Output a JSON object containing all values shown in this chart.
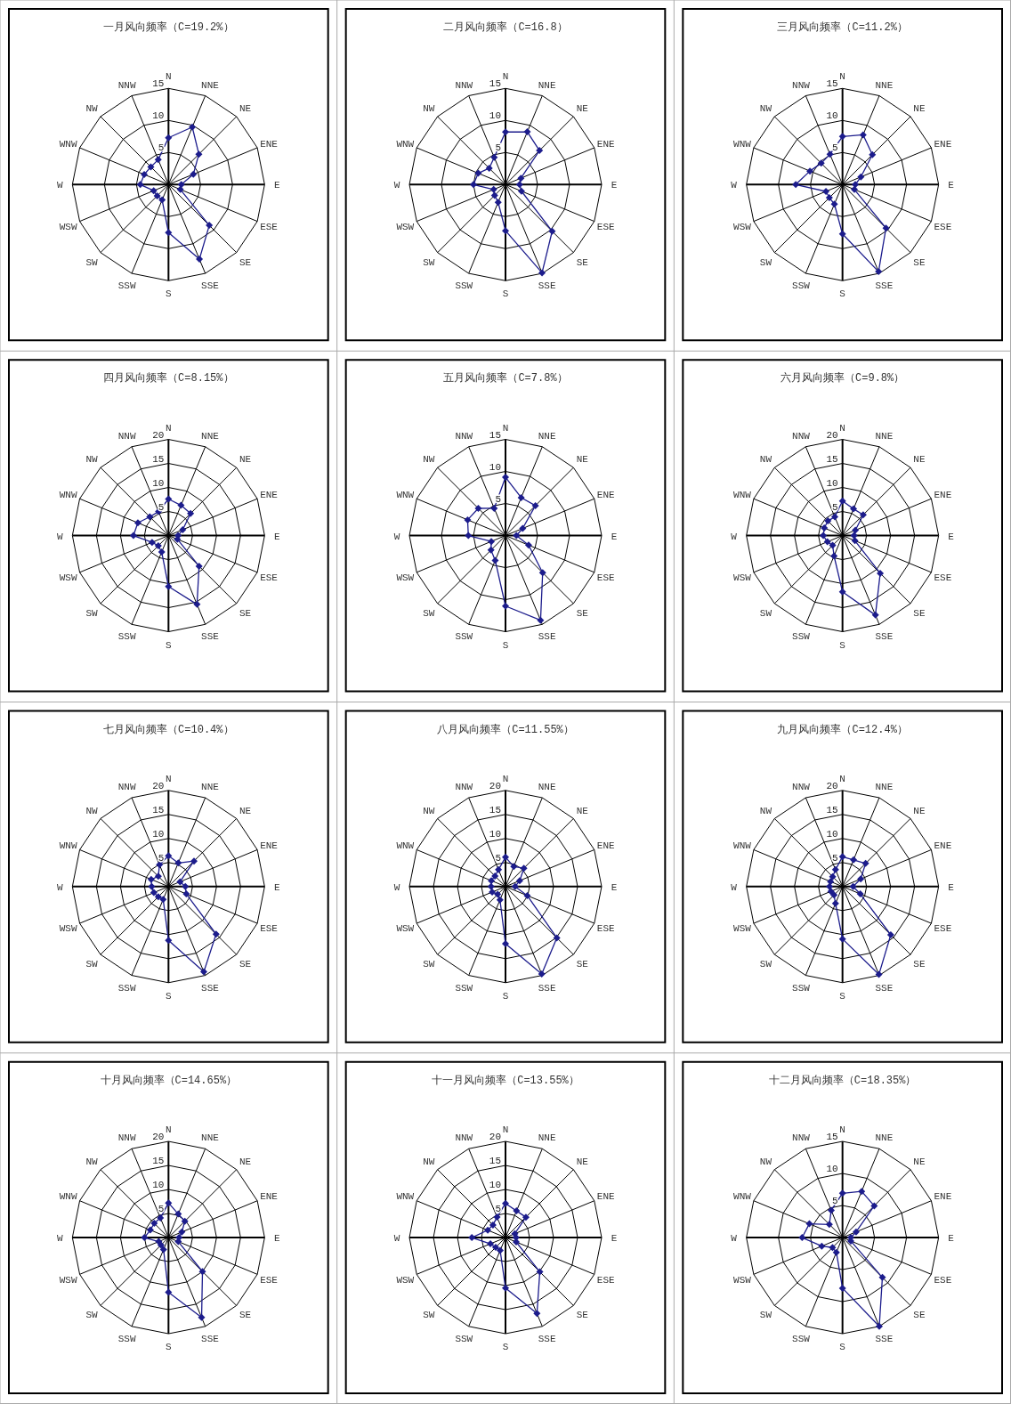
{
  "chart_data": [
    {
      "type": "radar",
      "title": "一月风向频率（C=19.2%）",
      "categories": [
        "N",
        "NNE",
        "NE",
        "ENE",
        "E",
        "ESE",
        "SE",
        "SSE",
        "S",
        "SSW",
        "SW",
        "WSW",
        "W",
        "WNW",
        "NW",
        "NNW"
      ],
      "series": [
        {
          "color": "#1c1c8c",
          "values": [
            7.3,
            9.7,
            6.7,
            4.2,
            2.0,
            2.0,
            9.0,
            12.6,
            7.5,
            2.6,
            2.5,
            2.5,
            4.4,
            4.1,
            3.9,
            4.2
          ]
        }
      ],
      "ylim": [
        0,
        15
      ],
      "yticks": [
        5,
        10,
        15
      ],
      "marker": "diamond",
      "grid": true
    },
    {
      "type": "radar",
      "title": "二月风向频率（C=16.8）",
      "categories": [
        "N",
        "NNE",
        "NE",
        "ENE",
        "E",
        "ESE",
        "SE",
        "SSE",
        "S",
        "SSW",
        "SW",
        "WSW",
        "W",
        "WNW",
        "NW",
        "NNW"
      ],
      "series": [
        {
          "color": "#1c1c8c",
          "values": [
            8.2,
            8.9,
            7.5,
            2.6,
            2.2,
            2.7,
            10.3,
            14.9,
            7.2,
            3.0,
            2.4,
            2.0,
            5.0,
            4.6,
            3.6,
            4.6
          ]
        }
      ],
      "ylim": [
        0,
        15
      ],
      "yticks": [
        5,
        10,
        15
      ],
      "marker": "diamond",
      "grid": true
    },
    {
      "type": "radar",
      "title": "三月风向频率（C=11.2%）",
      "categories": [
        "N",
        "NNE",
        "NE",
        "ENE",
        "E",
        "ESE",
        "SE",
        "SSE",
        "S",
        "SSW",
        "SW",
        "WSW",
        "W",
        "WNW",
        "NW",
        "NNW"
      ],
      "series": [
        {
          "color": "#1c1c8c",
          "values": [
            7.5,
            8.4,
            6.6,
            3.1,
            2.0,
            2.0,
            9.6,
            14.7,
            7.7,
            3.3,
            2.9,
            2.8,
            7.3,
            5.5,
            4.7,
            5.1
          ]
        }
      ],
      "ylim": [
        0,
        15
      ],
      "yticks": [
        5,
        10,
        15
      ],
      "marker": "diamond",
      "grid": true
    },
    {
      "type": "radar",
      "title": "四月风向频率（C=8.15%）",
      "categories": [
        "N",
        "NNE",
        "NE",
        "ENE",
        "E",
        "ESE",
        "SE",
        "SSE",
        "S",
        "SSW",
        "SW",
        "WSW",
        "W",
        "WNW",
        "NW",
        "NNW"
      ],
      "series": [
        {
          "color": "#1c1c8c",
          "values": [
            7.6,
            6.8,
            6.5,
            3.2,
            2.0,
            2.0,
            9.0,
            15.5,
            10.6,
            3.7,
            3.0,
            3.7,
            7.3,
            6.9,
            5.5,
            5.4
          ]
        }
      ],
      "ylim": [
        0,
        20
      ],
      "yticks": [
        5,
        10,
        15,
        20
      ],
      "marker": "diamond",
      "grid": true
    },
    {
      "type": "radar",
      "title": "五月风向频率（C=7.8%）",
      "categories": [
        "N",
        "NNE",
        "NE",
        "ENE",
        "E",
        "ESE",
        "SE",
        "SSE",
        "S",
        "SSW",
        "SW",
        "WSW",
        "W",
        "WNW",
        "NW",
        "NNW"
      ],
      "series": [
        {
          "color": "#1c1c8c",
          "values": [
            9.1,
            6.4,
            6.6,
            2.9,
            1.7,
            3.9,
            8.2,
            14.3,
            11.0,
            4.2,
            3.2,
            2.4,
            5.8,
            6.4,
            6.0,
            4.6
          ]
        }
      ],
      "ylim": [
        0,
        15
      ],
      "yticks": [
        5,
        10,
        15
      ],
      "marker": "diamond",
      "grid": true
    },
    {
      "type": "radar",
      "title": "六月风向频率（C=9.8%）",
      "categories": [
        "N",
        "NNE",
        "NE",
        "ENE",
        "E",
        "ESE",
        "SE",
        "SSE",
        "S",
        "SSW",
        "SW",
        "WSW",
        "W",
        "WNW",
        "NW",
        "NNW"
      ],
      "series": [
        {
          "color": "#1c1c8c",
          "values": [
            7.2,
            6.0,
            6.1,
            2.9,
            2.4,
            2.8,
            11.1,
            17.9,
            11.7,
            4.6,
            2.9,
            3.4,
            4.0,
            4.1,
            4.3,
            4.2
          ]
        }
      ],
      "ylim": [
        0,
        20
      ],
      "yticks": [
        5,
        10,
        15,
        20
      ],
      "marker": "diamond",
      "grid": true
    },
    {
      "type": "radar",
      "title": "七月风向频率（C=10.4%）",
      "categories": [
        "N",
        "NNE",
        "NE",
        "ENE",
        "E",
        "ESE",
        "SE",
        "SSE",
        "S",
        "SSW",
        "SW",
        "WSW",
        "W",
        "WNW",
        "NW",
        "NNW"
      ],
      "series": [
        {
          "color": "#1c1c8c",
          "values": [
            6.4,
            5.3,
            7.5,
            2.6,
            3.5,
            4.0,
            14.0,
            19.2,
            11.2,
            2.9,
            3.0,
            3.3,
            3.5,
            3.9,
            3.0,
            4.9
          ]
        }
      ],
      "ylim": [
        0,
        20
      ],
      "yticks": [
        5,
        10,
        15,
        20
      ],
      "marker": "diamond",
      "grid": true
    },
    {
      "type": "radar",
      "title": "八月风向频率（C=11.55%）",
      "categories": [
        "N",
        "NNE",
        "NE",
        "ENE",
        "E",
        "ESE",
        "SE",
        "SSE",
        "S",
        "SSW",
        "SW",
        "WSW",
        "W",
        "WNW",
        "NW",
        "NNW"
      ],
      "series": [
        {
          "color": "#1c1c8c",
          "values": [
            6.1,
            4.5,
            5.4,
            3.2,
            2.0,
            4.9,
            15.1,
            19.7,
            11.9,
            3.0,
            2.3,
            3.0,
            3.0,
            3.2,
            3.1,
            3.8
          ]
        }
      ],
      "ylim": [
        0,
        20
      ],
      "yticks": [
        5,
        10,
        15,
        20
      ],
      "marker": "diamond",
      "grid": true
    },
    {
      "type": "radar",
      "title": "九月风向频率（C=12.4%）",
      "categories": [
        "N",
        "NNE",
        "NE",
        "ENE",
        "E",
        "ESE",
        "SE",
        "SSE",
        "S",
        "SSW",
        "SW",
        "WSW",
        "W",
        "WNW",
        "NW",
        "NNW"
      ],
      "series": [
        {
          "color": "#1c1c8c",
          "values": [
            6.2,
            6.0,
            6.8,
            4.1,
            2.2,
            4.0,
            14.2,
            19.8,
            10.9,
            3.8,
            2.5,
            2.6,
            2.7,
            2.7,
            2.9,
            3.8
          ]
        }
      ],
      "ylim": [
        0,
        20
      ],
      "yticks": [
        5,
        10,
        15,
        20
      ],
      "marker": "diamond",
      "grid": true
    },
    {
      "type": "radar",
      "title": "十月风向频率（C=14.65%）",
      "categories": [
        "N",
        "NNE",
        "NE",
        "ENE",
        "E",
        "ESE",
        "SE",
        "SSE",
        "S",
        "SSW",
        "SW",
        "WSW",
        "W",
        "WNW",
        "NW",
        "NNW"
      ],
      "series": [
        {
          "color": "#1c1c8c",
          "values": [
            7.2,
            5.3,
            4.8,
            3.0,
            2.2,
            2.2,
            10.0,
            18.0,
            11.4,
            2.7,
            2.2,
            2.2,
            5.0,
            4.1,
            4.2,
            4.4
          ]
        }
      ],
      "ylim": [
        0,
        20
      ],
      "yticks": [
        5,
        10,
        15,
        20
      ],
      "marker": "diamond",
      "grid": true
    },
    {
      "type": "radar",
      "title": "十一月风向频率（C=13.55%）",
      "categories": [
        "N",
        "NNE",
        "NE",
        "ENE",
        "E",
        "ESE",
        "SE",
        "SSE",
        "S",
        "SSW",
        "SW",
        "WSW",
        "W",
        "WNW",
        "NW",
        "NNW"
      ],
      "series": [
        {
          "color": "#1c1c8c",
          "values": [
            7.1,
            6.0,
            6.0,
            2.1,
            2.2,
            2.4,
            10.1,
            17.1,
            10.5,
            2.9,
            2.9,
            3.4,
            7.0,
            4.0,
            3.7,
            4.6
          ]
        }
      ],
      "ylim": [
        0,
        20
      ],
      "yticks": [
        5,
        10,
        15,
        20
      ],
      "marker": "diamond",
      "grid": true
    },
    {
      "type": "radar",
      "title": "十二月风向频率（C=18.35%）",
      "categories": [
        "N",
        "NNE",
        "NE",
        "ENE",
        "E",
        "ESE",
        "SE",
        "SSE",
        "S",
        "SSW",
        "SW",
        "WSW",
        "W",
        "WNW",
        "NW",
        "NNW"
      ],
      "series": [
        {
          "color": "#1c1c8c",
          "values": [
            6.9,
            7.8,
            7.0,
            2.3,
            1.3,
            1.4,
            8.8,
            15.0,
            7.9,
            2.5,
            2.2,
            3.5,
            6.3,
            5.6,
            2.9,
            4.6
          ]
        }
      ],
      "ylim": [
        0,
        15
      ],
      "yticks": [
        5,
        10,
        15
      ],
      "marker": "diamond",
      "grid": true
    }
  ]
}
